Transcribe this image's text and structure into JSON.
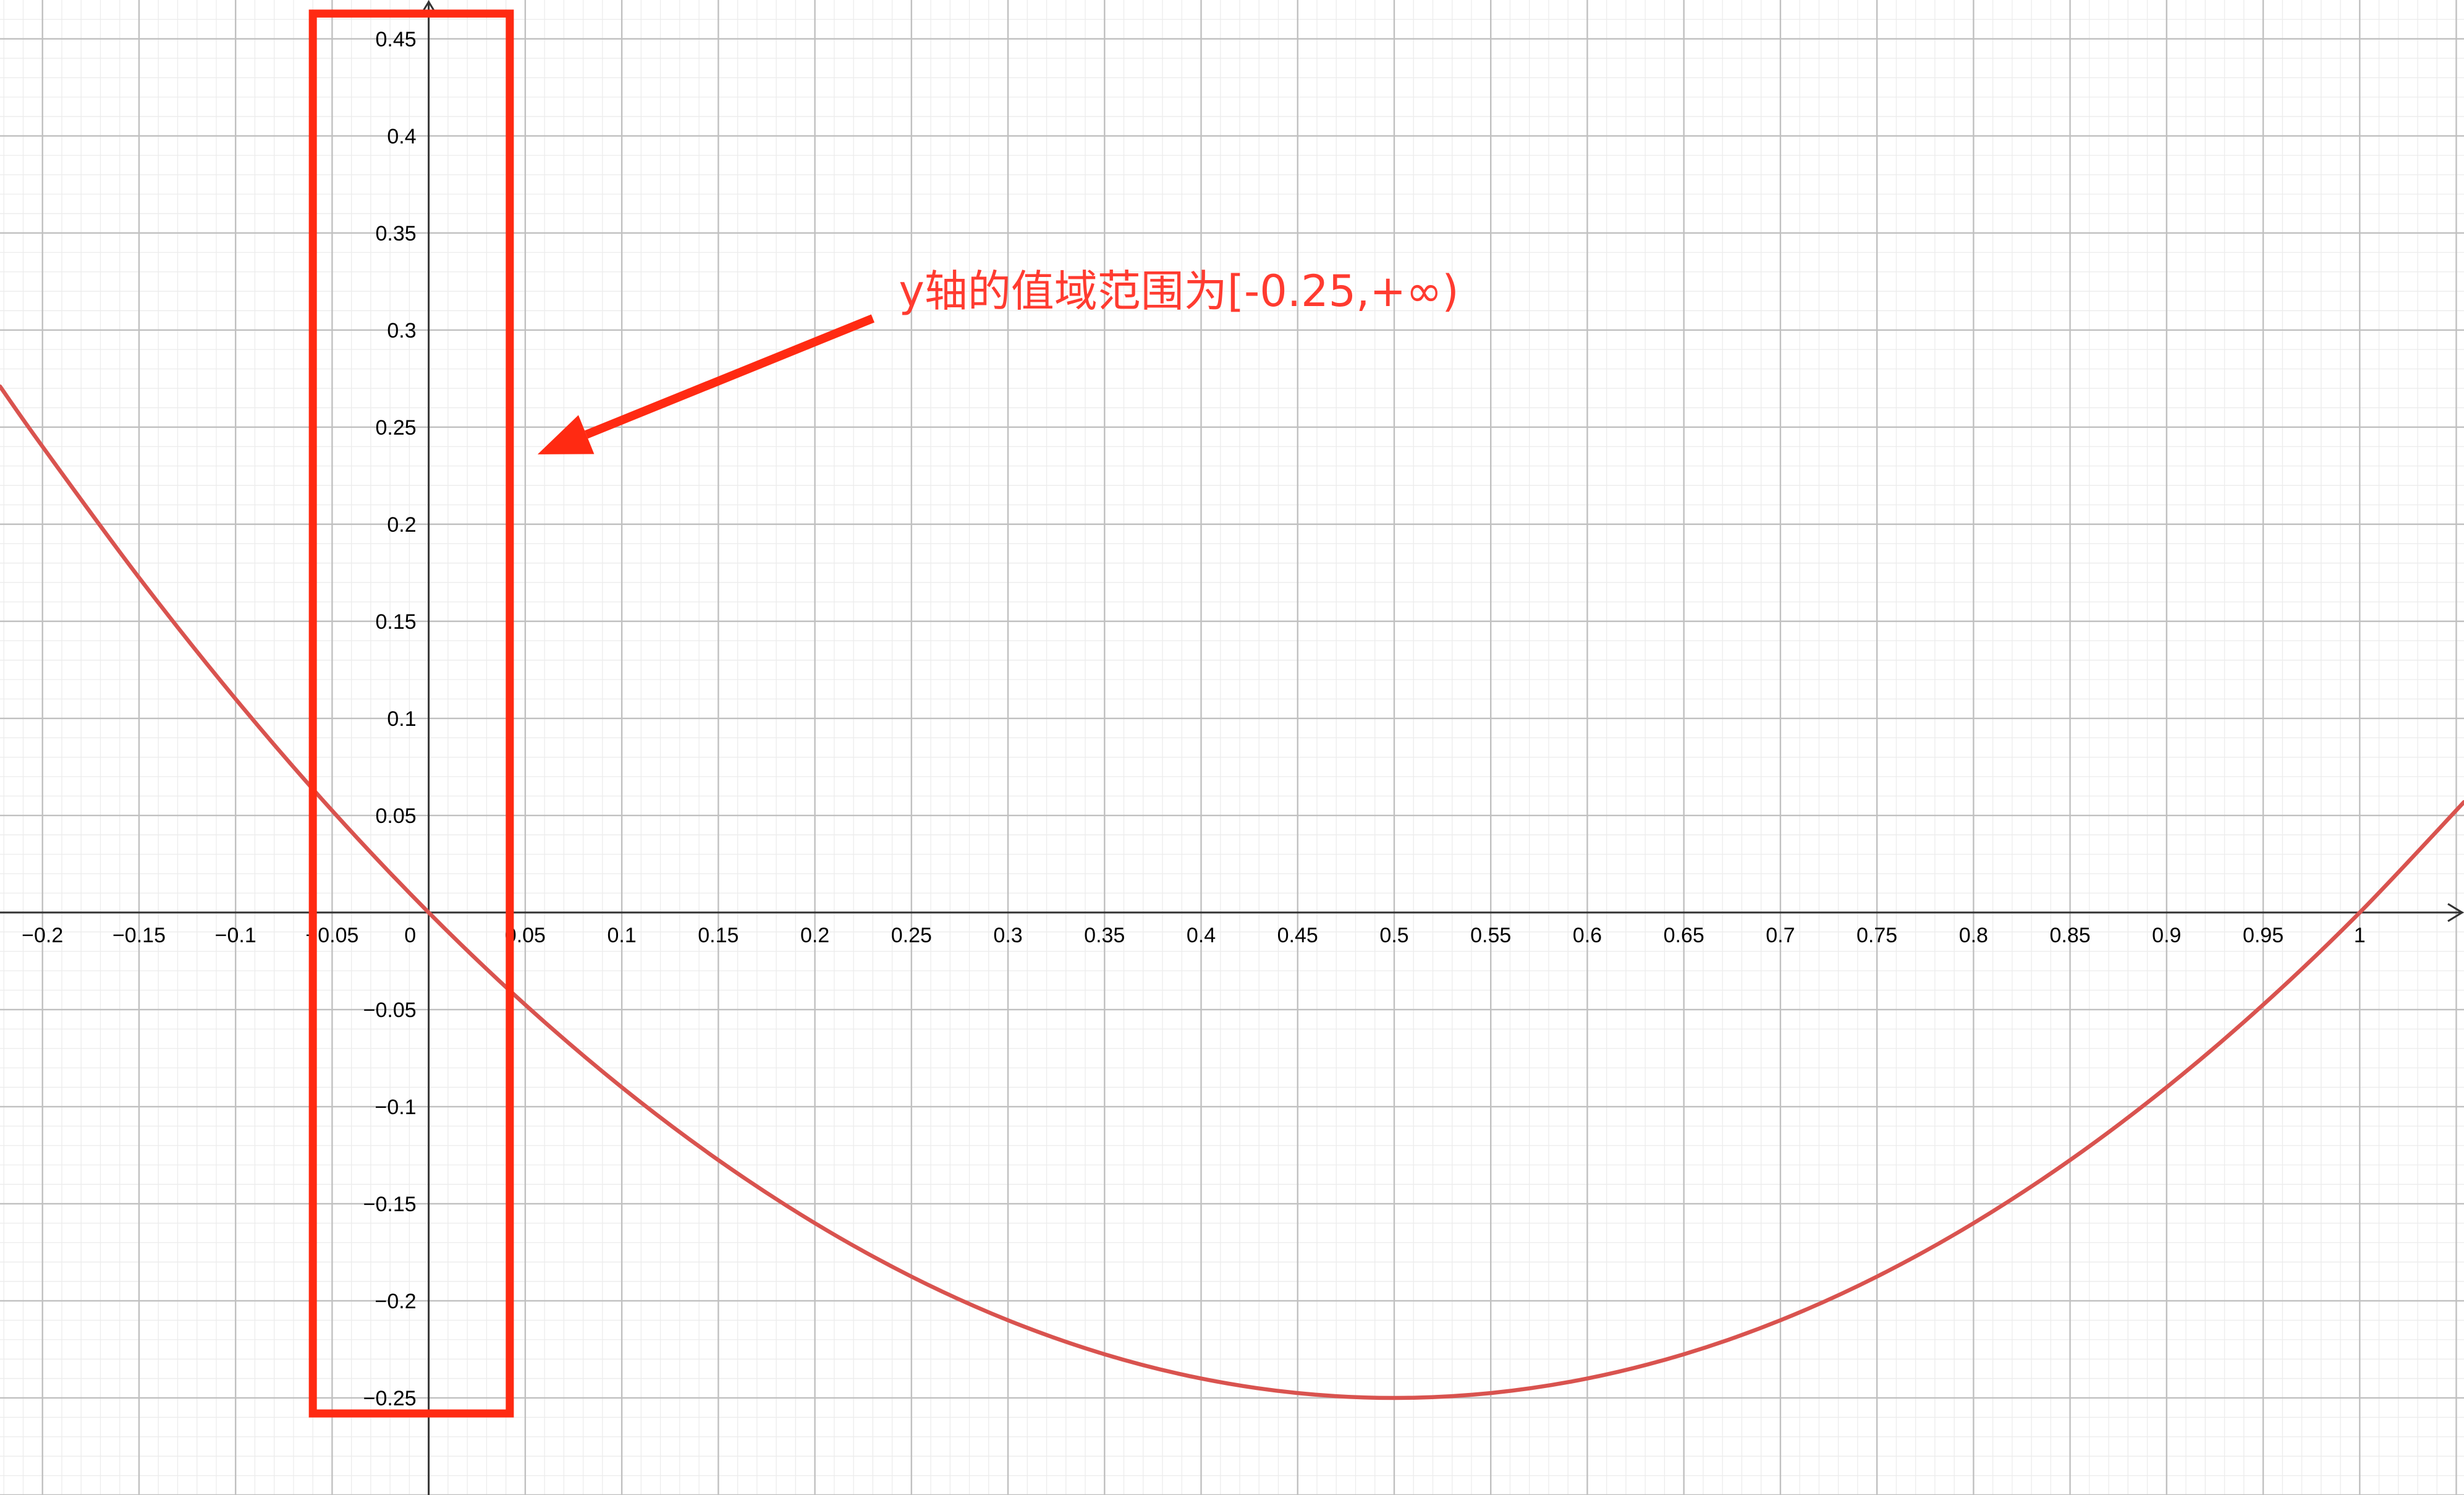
{
  "chart_data": {
    "type": "line",
    "title": "",
    "xlabel": "",
    "ylabel": "",
    "xlim": [
      -0.222,
      1.054
    ],
    "ylim": [
      -0.3,
      0.47
    ],
    "grid": true,
    "x_ticks": [
      -0.2,
      -0.15,
      -0.1,
      -0.05,
      0,
      0.05,
      0.1,
      0.15,
      0.2,
      0.25,
      0.3,
      0.35,
      0.4,
      0.45,
      0.5,
      0.55,
      0.6,
      0.65,
      0.7,
      0.75,
      0.8,
      0.85,
      0.9,
      0.95,
      1
    ],
    "x_tick_labels": [
      "−0.2",
      "−0.15",
      "−0.1",
      "−0.05",
      "0",
      "0.05",
      "0.1",
      "0.15",
      "0.2",
      "0.25",
      "0.3",
      "0.35",
      "0.4",
      "0.45",
      "0.5",
      "0.55",
      "0.6",
      "0.65",
      "0.7",
      "0.75",
      "0.8",
      "0.85",
      "0.9",
      "0.95",
      "1"
    ],
    "y_ticks": [
      0.45,
      0.4,
      0.35,
      0.3,
      0.25,
      0.2,
      0.15,
      0.1,
      0.05,
      -0.05,
      -0.1,
      -0.15,
      -0.2,
      -0.25
    ],
    "y_tick_labels": [
      "0.45",
      "0.4",
      "0.35",
      "0.3",
      "0.25",
      "0.2",
      "0.15",
      "0.1",
      "0.05",
      "−0.05",
      "−0.1",
      "−0.15",
      "−0.2",
      "−0.25"
    ],
    "series": [
      {
        "color": "#d9534f",
        "x": [
          -0.222,
          -0.2,
          -0.15,
          -0.1,
          -0.05,
          0,
          0.05,
          0.1,
          0.15,
          0.2,
          0.25,
          0.3,
          0.35,
          0.4,
          0.45,
          0.5,
          0.55,
          0.6,
          0.65,
          0.7,
          0.75,
          0.8,
          0.85,
          0.9,
          0.95,
          1,
          1.054
        ],
        "y": [
          0.271,
          0.24,
          0.1725,
          0.11,
          0.0525,
          0,
          -0.0475,
          -0.09,
          -0.1275,
          -0.16,
          -0.1875,
          -0.21,
          -0.2275,
          -0.24,
          -0.2475,
          -0.25,
          -0.2475,
          -0.24,
          -0.2275,
          -0.21,
          -0.1875,
          -0.16,
          -0.1275,
          -0.09,
          -0.0475,
          0,
          0.0569
        ]
      }
    ],
    "highlight_box": {
      "x_range": [
        -0.06,
        0.042
      ],
      "y_range": [
        -0.258,
        0.463
      ],
      "color": "#ff2a12"
    },
    "annotation": {
      "text": "y轴的值域范围为[-0.25,+∞)",
      "color": "#ff3b30",
      "arrow_color": "#ff2a12"
    }
  }
}
